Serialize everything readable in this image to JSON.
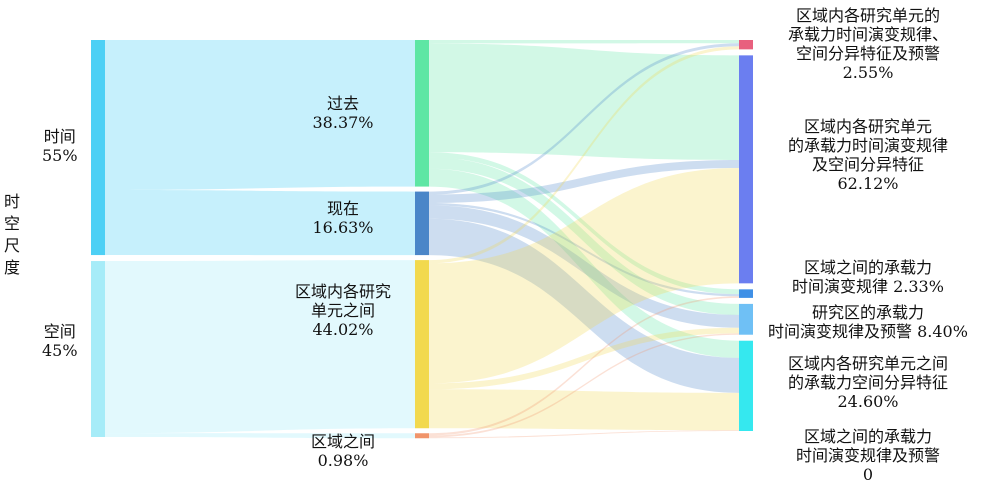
{
  "chart_data": {
    "type": "sankey",
    "title": "",
    "axis_title": "时空尺度",
    "levels": [
      {
        "nodes": [
          {
            "id": "time",
            "lines": [
              "时间",
              "55%"
            ],
            "value": 55,
            "color": "#4dd0f5"
          },
          {
            "id": "space",
            "lines": [
              "空间",
              "45%"
            ],
            "value": 45,
            "color": "#a6ecf8"
          }
        ]
      },
      {
        "nodes": [
          {
            "id": "past",
            "lines": [
              "过去",
              "38.37%"
            ],
            "value": 38.37,
            "color": "#5ee6a4"
          },
          {
            "id": "present",
            "lines": [
              "现在",
              "16.63%"
            ],
            "value": 16.63,
            "color": "#4a86c8"
          },
          {
            "id": "within",
            "lines": [
              "区域内各研究",
              "单元之间",
              "44.02%"
            ],
            "value": 44.02,
            "color": "#f2d94e"
          },
          {
            "id": "between",
            "lines": [
              "区域之间",
              "0.98%"
            ],
            "value": 0.98,
            "color": "#f0946a"
          }
        ]
      },
      {
        "nodes": [
          {
            "id": "o1",
            "lines": [
              "区域内各研究单元的",
              "承载力时间演变规律、",
              "空间分异特征及预警",
              "2.55%"
            ],
            "value": 2.55,
            "color": "#e8607e"
          },
          {
            "id": "o2",
            "lines": [
              "区域内各研究单元",
              "的承载力时间演变规律",
              "及空间分异特征",
              "62.12%"
            ],
            "value": 62.12,
            "color": "#6b7ef0"
          },
          {
            "id": "o3",
            "lines": [
              "区域之间的承载力",
              "时间演变规律 2.33%"
            ],
            "value": 2.33,
            "color": "#3f90e6"
          },
          {
            "id": "o4",
            "lines": [
              "研究区的承载力",
              "时间演变规律及预警 8.40%"
            ],
            "value": 8.4,
            "color": "#6fc0f5"
          },
          {
            "id": "o5",
            "lines": [
              "区域内各研究单元之间",
              "的承载力空间分异特征",
              "24.60%"
            ],
            "value": 24.6,
            "color": "#35e8ef"
          },
          {
            "id": "o6",
            "lines": [
              "区域之间的承载力",
              "时间演变规律及预警",
              "0"
            ],
            "value": 0,
            "color": "#7fd6c0"
          }
        ]
      }
    ],
    "links": [
      {
        "source": "time",
        "target": "past",
        "value": 38.37
      },
      {
        "source": "time",
        "target": "present",
        "value": 16.63
      },
      {
        "source": "space",
        "target": "within",
        "value": 44.02
      },
      {
        "source": "space",
        "target": "between",
        "value": 0.98
      },
      {
        "source": "past",
        "target": "o1",
        "value": 0.9
      },
      {
        "source": "past",
        "target": "o2",
        "value": 28.5
      },
      {
        "source": "past",
        "target": "o3",
        "value": 1.3
      },
      {
        "source": "past",
        "target": "o4",
        "value": 3.0
      },
      {
        "source": "past",
        "target": "o5",
        "value": 4.67
      },
      {
        "source": "present",
        "target": "o1",
        "value": 0.8
      },
      {
        "source": "present",
        "target": "o2",
        "value": 2.2
      },
      {
        "source": "present",
        "target": "o3",
        "value": 0.6
      },
      {
        "source": "present",
        "target": "o4",
        "value": 3.5
      },
      {
        "source": "present",
        "target": "o5",
        "value": 9.53
      },
      {
        "source": "within",
        "target": "o1",
        "value": 0.85
      },
      {
        "source": "within",
        "target": "o2",
        "value": 31.42
      },
      {
        "source": "within",
        "target": "o4",
        "value": 1.55
      },
      {
        "source": "within",
        "target": "o5",
        "value": 10.2
      },
      {
        "source": "between",
        "target": "o3",
        "value": 0.43
      },
      {
        "source": "between",
        "target": "o4",
        "value": 0.35
      },
      {
        "source": "between",
        "target": "o5",
        "value": 0.2
      }
    ]
  }
}
